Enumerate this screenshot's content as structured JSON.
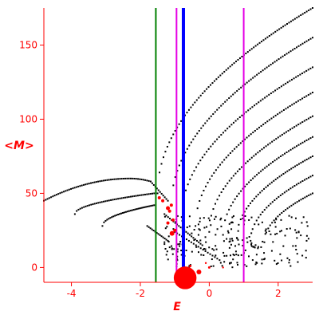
{
  "chart_data": {
    "type": "scatter",
    "xlabel": "E",
    "ylabel": "<M>",
    "xlim": [
      -4.8,
      3.0
    ],
    "ylim": [
      -10,
      175
    ],
    "x_ticks": [
      -4,
      -2,
      0,
      2
    ],
    "x_tick_labels": [
      "-4",
      "-2",
      "0",
      "2"
    ],
    "y_ticks": [
      0,
      50,
      100,
      150
    ],
    "y_tick_labels": [
      "0",
      "50",
      "100",
      "150"
    ],
    "grid": false,
    "colors": {
      "axes": "#ff0000",
      "points": "#000000",
      "highlight": "#ff0000",
      "line_green": "#008000",
      "line_blue": "#0000ff",
      "line_magenta": "#e600e6"
    },
    "vertical_lines": [
      {
        "x": -1.55,
        "color": "#008000",
        "weight": "thin"
      },
      {
        "x": -0.95,
        "color": "#e600e6",
        "weight": "thin"
      },
      {
        "x": -0.75,
        "color": "#0000ff",
        "weight": "thick"
      },
      {
        "x": 1.0,
        "color": "#e600e6",
        "weight": "thin"
      }
    ],
    "curves": [
      {
        "x0": -1.5,
        "y0": 50,
        "x1": 3.0,
        "y1": 175,
        "n": 80,
        "shape": "sqrt"
      },
      {
        "x0": -1.1,
        "y0": 42,
        "x1": 3.0,
        "y1": 155,
        "n": 72,
        "shape": "sqrt"
      },
      {
        "x0": -0.8,
        "y0": 34,
        "x1": 3.0,
        "y1": 135,
        "n": 64,
        "shape": "sqrt"
      },
      {
        "x0": -0.4,
        "y0": 28,
        "x1": 3.0,
        "y1": 118,
        "n": 58,
        "shape": "sqrt"
      },
      {
        "x0": 0.0,
        "y0": 24,
        "x1": 3.0,
        "y1": 102,
        "n": 52,
        "shape": "sqrt"
      },
      {
        "x0": 0.4,
        "y0": 22,
        "x1": 3.0,
        "y1": 88,
        "n": 46,
        "shape": "sqrt"
      },
      {
        "x0": 0.8,
        "y0": 20,
        "x1": 3.0,
        "y1": 75,
        "n": 40,
        "shape": "sqrt"
      },
      {
        "x0": 1.2,
        "y0": 18,
        "x1": 3.0,
        "y1": 62,
        "n": 32,
        "shape": "sqrt"
      },
      {
        "x0": 1.6,
        "y0": 17,
        "x1": 3.0,
        "y1": 50,
        "n": 26,
        "shape": "sqrt"
      },
      {
        "x0": -4.8,
        "y0": 45,
        "x1": -1.7,
        "y1": 58,
        "n": 60,
        "shape": "arc",
        "peak_x": -2.3,
        "peak_y": 60
      },
      {
        "x0": -1.7,
        "y0": 58,
        "x1": -1.2,
        "y1": 45,
        "n": 12,
        "shape": "linear"
      },
      {
        "x0": -3.9,
        "y0": 36,
        "x1": -1.6,
        "y1": 50,
        "n": 45,
        "shape": "sqrt"
      },
      {
        "x0": -3.1,
        "y0": 28,
        "x1": -1.6,
        "y1": 42,
        "n": 34,
        "shape": "sqrt"
      },
      {
        "x0": -1.8,
        "y0": 28,
        "x1": -1.2,
        "y1": 18,
        "n": 14,
        "shape": "linear"
      },
      {
        "x0": -1.3,
        "y0": 36,
        "x1": -0.2,
        "y1": 15,
        "n": 22,
        "shape": "linear"
      },
      {
        "x0": -1.0,
        "y0": 24,
        "x1": 0.3,
        "y1": 5,
        "n": 20,
        "shape": "linear"
      }
    ],
    "scatter_cloud": {
      "x_range": [
        -1.3,
        3.0
      ],
      "y_range": [
        0,
        35
      ],
      "n": 230,
      "seed": 7
    },
    "red_points": [
      {
        "x": -1.45,
        "y": 47,
        "size": 2
      },
      {
        "x": -1.35,
        "y": 45,
        "size": 2
      },
      {
        "x": -1.2,
        "y": 40,
        "size": 2.5
      },
      {
        "x": -1.15,
        "y": 38,
        "size": 2
      },
      {
        "x": -1.1,
        "y": 42,
        "size": 2
      },
      {
        "x": -1.05,
        "y": 32,
        "size": 2
      },
      {
        "x": -1.2,
        "y": 30,
        "size": 2
      },
      {
        "x": -1.08,
        "y": 23,
        "size": 3
      },
      {
        "x": -1.0,
        "y": 25,
        "size": 2
      },
      {
        "x": -0.55,
        "y": 1,
        "size": 1.5
      },
      {
        "x": -0.3,
        "y": -3,
        "size": 3
      },
      {
        "x": 0.0,
        "y": 0,
        "size": 1.5
      },
      {
        "x": -0.1,
        "y": 3,
        "size": 1.2
      },
      {
        "x": 0.4,
        "y": 0,
        "size": 1.2
      }
    ],
    "blob": {
      "x": -0.7,
      "y": -7,
      "r_data_x": 0.33
    }
  }
}
